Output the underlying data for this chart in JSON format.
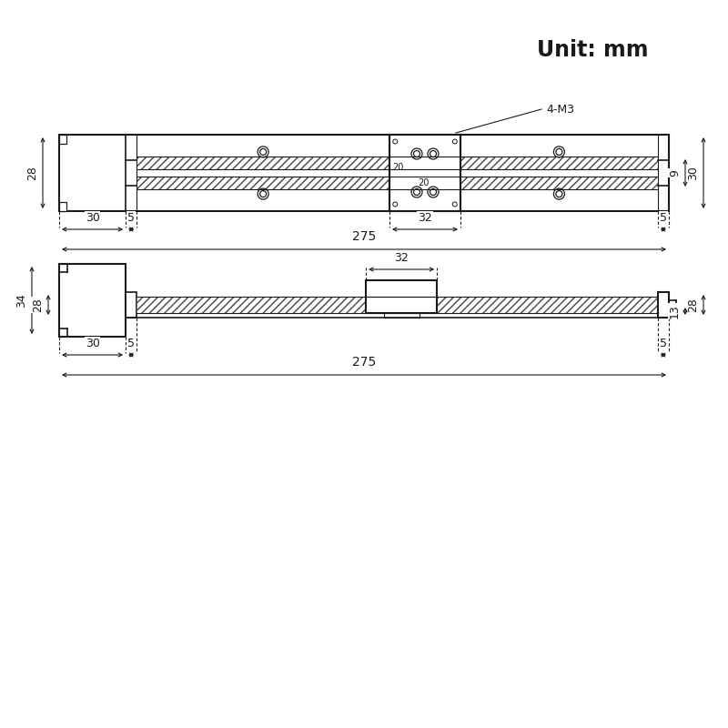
{
  "bg_color": "#ffffff",
  "line_color": "#1a1a1a",
  "unit_text": "Unit: mm",
  "unit_fontsize": 17,
  "top_view": {
    "label_28": "28",
    "label_30_left": "30",
    "label_5_left": "5",
    "label_32": "32",
    "label_5_right": "5",
    "label_275": "275",
    "label_9": "9",
    "label_30_right": "30",
    "label_4m3": "4-M3",
    "label_20_h": "20",
    "label_20_v": "20"
  },
  "bottom_view": {
    "label_34": "34",
    "label_28_left": "28",
    "label_30": "30",
    "label_5_left": "5",
    "label_32": "32",
    "label_5_right": "5",
    "label_275": "275",
    "label_28_right": "28",
    "label_13": "13"
  }
}
